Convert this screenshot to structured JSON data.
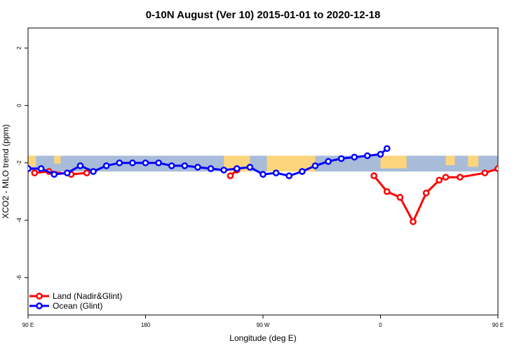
{
  "chart_data": {
    "type": "line",
    "title": "0-10N August (Ver 10)   2015-01-01 to 2020-12-18",
    "xlabel": "Longitude (deg E)",
    "ylabel": "XCO2 - MLO trend (ppm)",
    "xlim": [
      -180,
      180
    ],
    "ylim": [
      -7.3,
      2.7
    ],
    "x_ticks": [
      {
        "value": -180,
        "label": "90 E"
      },
      {
        "value": -90,
        "label": "180"
      },
      {
        "value": 0,
        "label": "90 W"
      },
      {
        "value": 90,
        "label": "0"
      },
      {
        "value": 180,
        "label": "90 E"
      }
    ],
    "y_ticks": [
      {
        "value": 2,
        "label": "2"
      },
      {
        "value": 0,
        "label": "0"
      },
      {
        "value": -2,
        "label": "-2"
      },
      {
        "value": -4,
        "label": "-4"
      },
      {
        "value": -6,
        "label": "-6"
      }
    ],
    "map_band": {
      "lat_range": "0-10N",
      "y_range": [
        -2.3,
        -1.75
      ],
      "ocean_color": "#a8bcda",
      "land_color": "#fcd57c"
    },
    "grid": false,
    "legend_position": "bottom-left",
    "series": [
      {
        "name": "Land (Nadir&Glint)",
        "color": "#ff0000",
        "x": [
          -175,
          -164,
          -147,
          -135,
          -25,
          -20,
          85,
          95,
          105,
          115,
          125,
          135,
          140,
          151,
          170,
          180,
          195
        ],
        "y": [
          -2.35,
          -2.3,
          -2.4,
          -2.35,
          -2.45,
          -2.25,
          -2.45,
          -3.0,
          -3.2,
          -4.05,
          -3.05,
          -2.6,
          -2.5,
          -2.5,
          -2.35,
          -2.2,
          -2.3
        ]
      },
      {
        "name": "Ocean (Glint)",
        "color": "#0000ff",
        "x": [
          -180,
          -170,
          -160,
          -150,
          -140,
          -130,
          -120,
          -110,
          -100,
          -90,
          -80,
          -70,
          -60,
          -50,
          -40,
          -30,
          -20,
          -10,
          0,
          10,
          20,
          30,
          40,
          50,
          60,
          70,
          80,
          90,
          95
        ],
        "y": [
          -2.2,
          -2.2,
          -2.4,
          -2.35,
          -2.1,
          -2.3,
          -2.1,
          -2.0,
          -2.0,
          -2.0,
          -2.0,
          -2.1,
          -2.1,
          -2.15,
          -2.2,
          -2.25,
          -2.2,
          -2.15,
          -2.4,
          -2.35,
          -2.45,
          -2.3,
          -2.1,
          -1.95,
          -1.85,
          -1.8,
          -1.75,
          -1.7,
          -1.5
        ]
      }
    ]
  }
}
